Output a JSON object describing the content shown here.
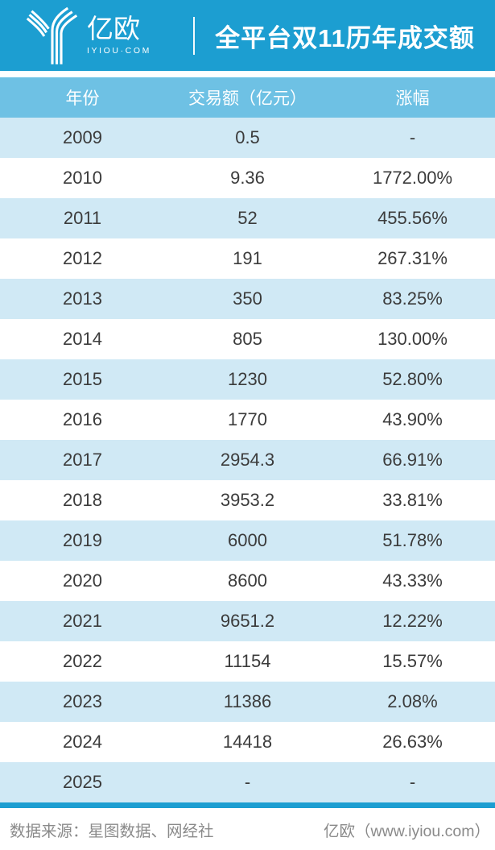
{
  "header": {
    "brand": "亿欧",
    "brand_domain": "IYIOU·COM",
    "title": "全平台双11历年成交额"
  },
  "table": {
    "columns": [
      "年份",
      "交易额（亿元）",
      "涨幅"
    ],
    "rows": [
      [
        "2009",
        "0.5",
        "-"
      ],
      [
        "2010",
        "9.36",
        "1772.00%"
      ],
      [
        "2011",
        "52",
        "455.56%"
      ],
      [
        "2012",
        "191",
        "267.31%"
      ],
      [
        "2013",
        "350",
        "83.25%"
      ],
      [
        "2014",
        "805",
        "130.00%"
      ],
      [
        "2015",
        "1230",
        "52.80%"
      ],
      [
        "2016",
        "1770",
        "43.90%"
      ],
      [
        "2017",
        "2954.3",
        "66.91%"
      ],
      [
        "2018",
        "3953.2",
        "33.81%"
      ],
      [
        "2019",
        "6000",
        "51.78%"
      ],
      [
        "2020",
        "8600",
        "43.33%"
      ],
      [
        "2021",
        "9651.2",
        "12.22%"
      ],
      [
        "2022",
        "11154",
        "15.57%"
      ],
      [
        "2023",
        "11386",
        "2.08%"
      ],
      [
        "2024",
        "14418",
        "26.63%"
      ],
      [
        "2025",
        "-",
        "-"
      ]
    ]
  },
  "footer": {
    "source": "数据来源：星图数据、网经社",
    "credit": "亿欧（www.iyiou.com）"
  },
  "icons": {
    "logo_mark": "iyiou-y-logo-icon"
  },
  "colors": {
    "banner_blue": "#1c9ed1",
    "table_header_blue": "#6ec1e4",
    "row_stripe_blue": "#d0e9f5",
    "cell_text": "#3b3b3b",
    "footer_text": "#8a8a8a",
    "banner_text": "#ffffff"
  },
  "chart_data": {
    "type": "table",
    "title": "全平台双11历年成交额",
    "columns": [
      "年份",
      "交易额（亿元）",
      "涨幅"
    ],
    "years": [
      2009,
      2010,
      2011,
      2012,
      2013,
      2014,
      2015,
      2016,
      2017,
      2018,
      2019,
      2020,
      2021,
      2022,
      2023,
      2024,
      2025
    ],
    "gmv_yi_yuan": [
      0.5,
      9.36,
      52,
      191,
      350,
      805,
      1230,
      1770,
      2954.3,
      3953.2,
      6000,
      8600,
      9651.2,
      11154,
      11386,
      14418,
      null
    ],
    "growth_pct": [
      null,
      1772.0,
      455.56,
      267.31,
      83.25,
      130.0,
      52.8,
      43.9,
      66.91,
      33.81,
      51.78,
      43.33,
      12.22,
      15.57,
      2.08,
      26.63,
      null
    ],
    "source": "星图数据、网经社",
    "legend_position": "none",
    "grid": false
  }
}
